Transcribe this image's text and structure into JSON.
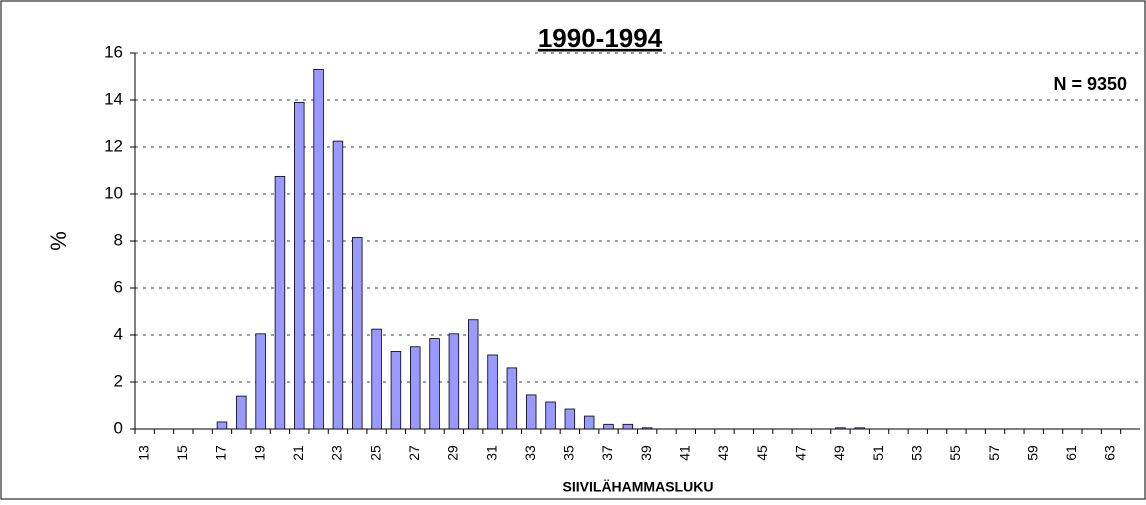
{
  "chart_data": {
    "type": "bar",
    "title": "1990-1994",
    "annotation": "N = 9350",
    "ylabel": "%",
    "xlabel": "SIIVILÄHAMMASLUKU",
    "categories": [
      13,
      null,
      15,
      null,
      17,
      null,
      19,
      null,
      21,
      null,
      23,
      null,
      25,
      null,
      27,
      null,
      29,
      null,
      31,
      null,
      33,
      null,
      35,
      null,
      37,
      null,
      39,
      null,
      41,
      null,
      43,
      null,
      45,
      null,
      47,
      null,
      49,
      null,
      51,
      null,
      53,
      null,
      55,
      null,
      57,
      null,
      59,
      null,
      61,
      null,
      63,
      null
    ],
    "values": [
      0,
      0,
      0,
      0,
      0.3,
      1.4,
      4.05,
      10.75,
      13.9,
      15.3,
      12.25,
      8.15,
      4.25,
      3.3,
      3.5,
      3.85,
      4.05,
      4.65,
      3.15,
      2.6,
      1.45,
      1.15,
      0.85,
      0.55,
      0.2,
      0.2,
      0.05,
      0,
      0,
      0,
      0,
      0,
      0,
      0,
      0,
      0,
      0.05,
      0.05,
      0,
      0,
      0,
      0,
      0,
      0,
      0,
      0,
      0,
      0,
      0,
      0,
      0,
      0
    ],
    "color": "#9999ff",
    "ylim": [
      0,
      16
    ],
    "yticks": [
      0,
      2,
      4,
      6,
      8,
      10,
      12,
      14,
      16
    ],
    "grid": true
  }
}
